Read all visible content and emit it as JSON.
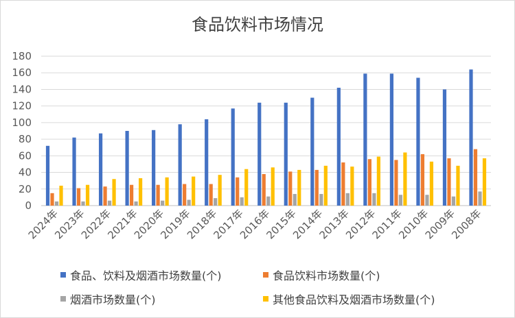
{
  "chart_data": {
    "type": "bar",
    "title": "食品饮料市场情况",
    "ylim": [
      0,
      180
    ],
    "yticks": [
      0,
      20,
      40,
      60,
      80,
      100,
      120,
      140,
      160,
      180
    ],
    "grid": true,
    "legend_position": "bottom",
    "categories": [
      "2024年",
      "2023年",
      "2022年",
      "2021年",
      "2020年",
      "2019年",
      "2018年",
      "2017年",
      "2016年",
      "2015年",
      "2014年",
      "2013年",
      "2012年",
      "2011年",
      "2010年",
      "2009年",
      "2008年"
    ],
    "series": [
      {
        "name": "食品、饮料及烟酒市场数量(个)",
        "color": "#4472c4",
        "values": [
          72,
          82,
          87,
          90,
          91,
          98,
          104,
          117,
          124,
          124,
          130,
          142,
          159,
          159,
          154,
          140,
          164
        ]
      },
      {
        "name": "食品饮料市场数量(个)",
        "color": "#ed7d31",
        "values": [
          15,
          21,
          23,
          25,
          25,
          26,
          26,
          34,
          38,
          41,
          43,
          52,
          56,
          55,
          62,
          57,
          68
        ]
      },
      {
        "name": "烟酒市场数量(个)",
        "color": "#a5a5a5",
        "values": [
          5,
          5,
          6,
          5,
          6,
          7,
          9,
          10,
          11,
          14,
          14,
          15,
          15,
          13,
          13,
          11,
          17
        ]
      },
      {
        "name": "其他食品饮料及烟酒市场数量(个)",
        "color": "#ffc000",
        "values": [
          24,
          25,
          32,
          33,
          34,
          35,
          37,
          44,
          46,
          43,
          48,
          47,
          59,
          64,
          53,
          48,
          57
        ]
      }
    ]
  }
}
